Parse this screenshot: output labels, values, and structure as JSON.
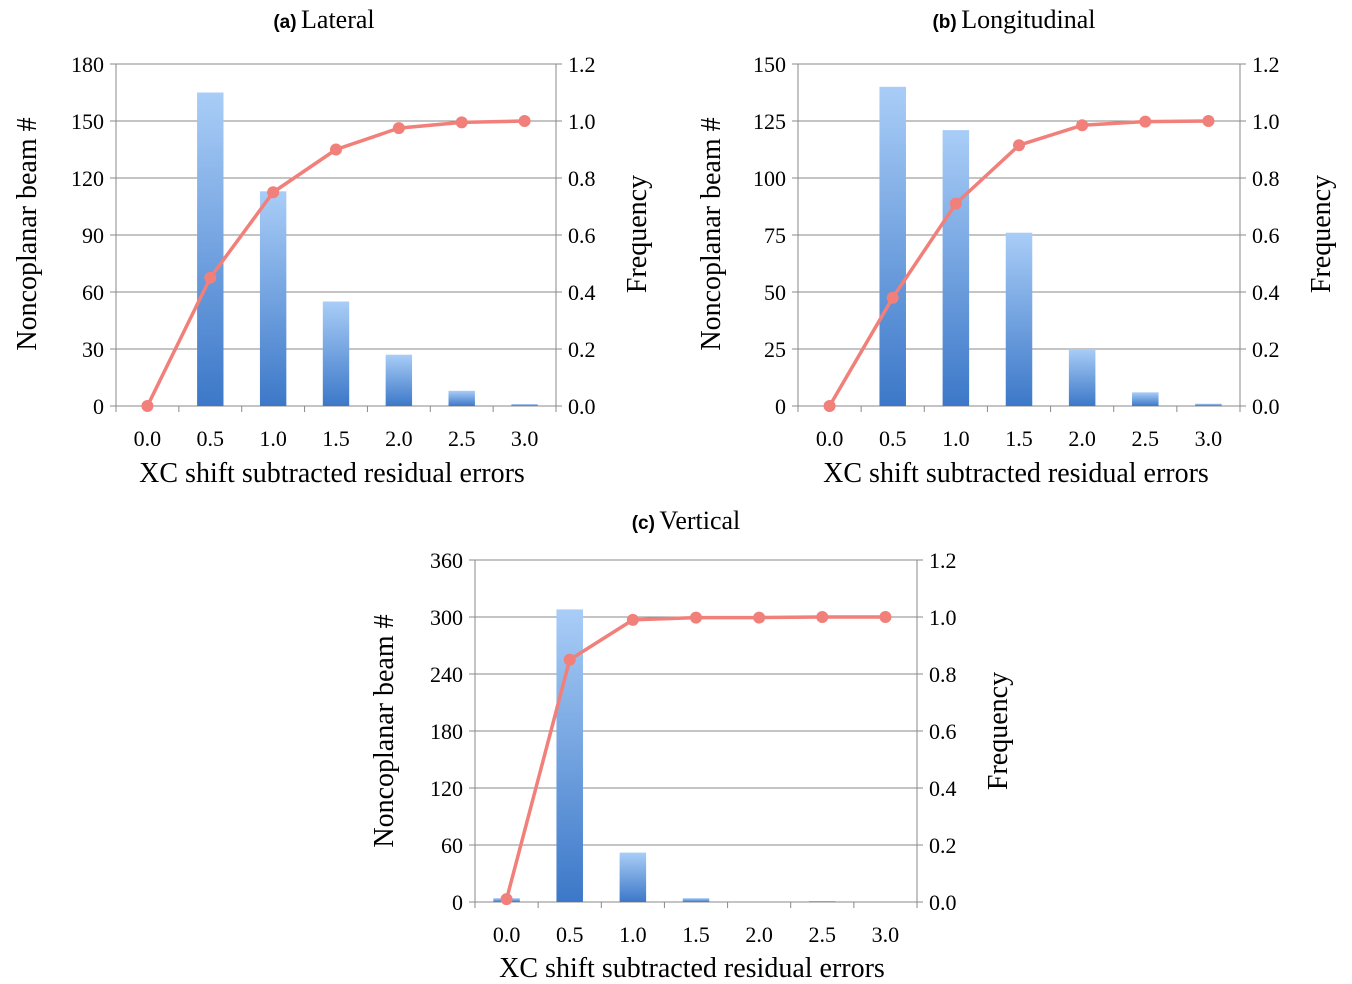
{
  "chart_data": [
    {
      "type": "bar",
      "panel_letter": "(a)",
      "title": "Lateral",
      "categories": [
        "0.0",
        "0.5",
        "1.0",
        "1.5",
        "2.0",
        "2.5",
        "3.0"
      ],
      "series": [
        {
          "name": "",
          "type": "bar",
          "axis": "left",
          "values": [
            0,
            165,
            113,
            55,
            27,
            8,
            1
          ]
        },
        {
          "name": "",
          "type": "line",
          "axis": "right",
          "values": [
            0.0,
            0.45,
            0.75,
            0.9,
            0.975,
            0.995,
            1.0
          ]
        }
      ],
      "xlabel": "XC shift subtracted residual errors",
      "ylabel": "Noncoplanar beam #",
      "y2label": "Frequency",
      "ylim": [
        0,
        180
      ],
      "yticks": [
        "0",
        "30",
        "60",
        "90",
        "120",
        "150",
        "180"
      ],
      "y2lim": [
        0,
        1.2
      ],
      "y2ticks": [
        "0.0",
        "0.2",
        "0.4",
        "0.6",
        "0.8",
        "1.0",
        "1.2"
      ],
      "grid": true,
      "legend": "none"
    },
    {
      "type": "bar",
      "panel_letter": "(b)",
      "title": "Longitudinal",
      "categories": [
        "0.0",
        "0.5",
        "1.0",
        "1.5",
        "2.0",
        "2.5",
        "3.0"
      ],
      "series": [
        {
          "name": "",
          "type": "bar",
          "axis": "left",
          "values": [
            0,
            140,
            121,
            76,
            25,
            6,
            1
          ]
        },
        {
          "name": "",
          "type": "line",
          "axis": "right",
          "values": [
            0.0,
            0.38,
            0.71,
            0.915,
            0.985,
            0.998,
            1.0
          ]
        }
      ],
      "xlabel": "XC shift subtracted residual errors",
      "ylabel": "Noncoplanar beam #",
      "y2label": "Frequency",
      "ylim": [
        0,
        150
      ],
      "yticks": [
        "0",
        "25",
        "50",
        "75",
        "100",
        "125",
        "150"
      ],
      "y2lim": [
        0,
        1.2
      ],
      "y2ticks": [
        "0.0",
        "0.2",
        "0.4",
        "0.6",
        "0.8",
        "1.0",
        "1.2"
      ],
      "grid": true,
      "legend": "none"
    },
    {
      "type": "bar",
      "panel_letter": "(c)",
      "title": "Vertical",
      "categories": [
        "0.0",
        "0.5",
        "1.0",
        "1.5",
        "2.0",
        "2.5",
        "3.0"
      ],
      "series": [
        {
          "name": "",
          "type": "bar",
          "axis": "left",
          "values": [
            4,
            308,
            52,
            4,
            0,
            1,
            0
          ]
        },
        {
          "name": "",
          "type": "line",
          "axis": "right",
          "values": [
            0.01,
            0.85,
            0.99,
            0.998,
            0.998,
            1.0,
            1.0
          ]
        }
      ],
      "xlabel": "XC shift subtracted residual errors",
      "ylabel": "Noncoplanar beam #",
      "y2label": "Frequency",
      "ylim": [
        0,
        360
      ],
      "yticks": [
        "0",
        "60",
        "120",
        "180",
        "240",
        "300",
        "360"
      ],
      "y2lim": [
        0,
        1.2
      ],
      "y2ticks": [
        "0.0",
        "0.2",
        "0.4",
        "0.6",
        "0.8",
        "1.0",
        "1.2"
      ],
      "grid": true,
      "legend": "none"
    }
  ],
  "colors": {
    "bar_top": "#a9cdf7",
    "bar_bottom": "#3c78c8",
    "line": "#f17f7a",
    "grid": "#8a8a8a",
    "axis": "#8a8a8a"
  }
}
